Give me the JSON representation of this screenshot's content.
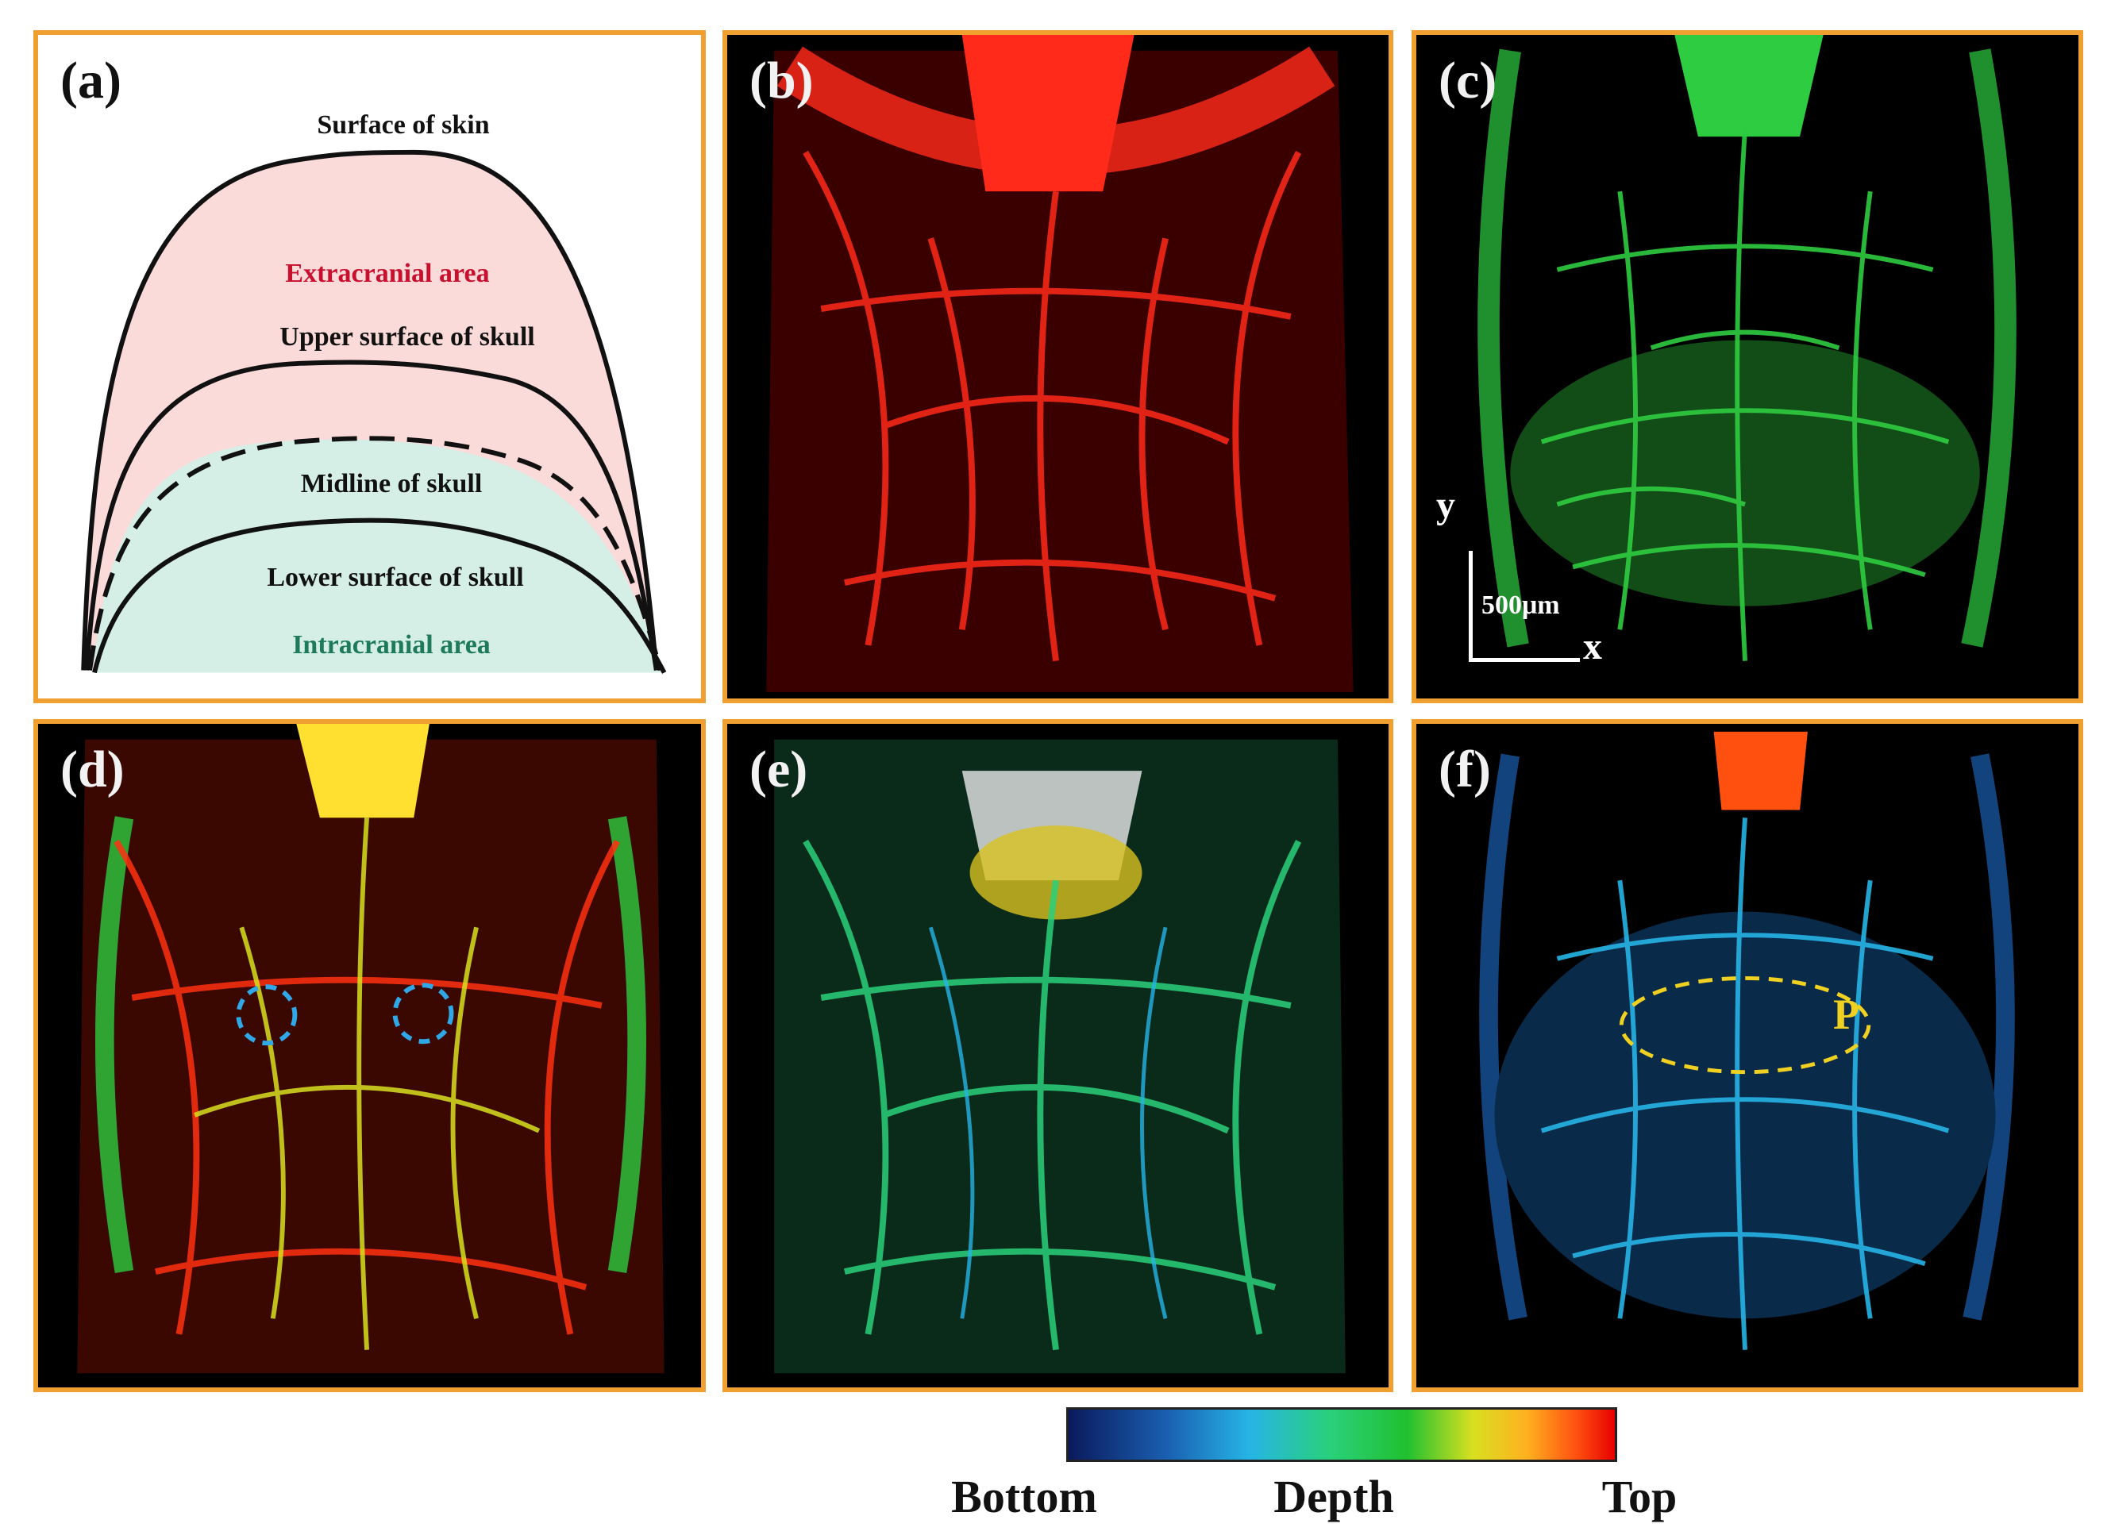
{
  "figure": {
    "panels": [
      {
        "id": "a",
        "label": "(a)"
      },
      {
        "id": "b",
        "label": "(b)"
      },
      {
        "id": "c",
        "label": "(c)"
      },
      {
        "id": "d",
        "label": "(d)"
      },
      {
        "id": "e",
        "label": "(e)"
      },
      {
        "id": "f",
        "label": "(f)"
      }
    ],
    "diagram": {
      "surface_of_skin": "Surface of skin",
      "extracranial_area": "Extracranial area",
      "upper_surface_of_skull": "Upper surface of skull",
      "midline_of_skull": "Midline of skull",
      "lower_surface_of_skull": "Lower surface of skull",
      "intracranial_area": "Intracranial area"
    },
    "scale_bar": {
      "y_axis": "y",
      "x_axis": "x",
      "length": "500μm"
    },
    "annotation_p": "P",
    "colorbar": {
      "left": "Bottom",
      "center": "Depth",
      "right": "Top"
    },
    "colors": {
      "panel_border": "#f0a030",
      "extracranial_fill": "#fbdada",
      "intracranial_fill": "#d6efe6",
      "vessel_red": "#ff2a1a",
      "vessel_green": "#2ecc40"
    }
  }
}
